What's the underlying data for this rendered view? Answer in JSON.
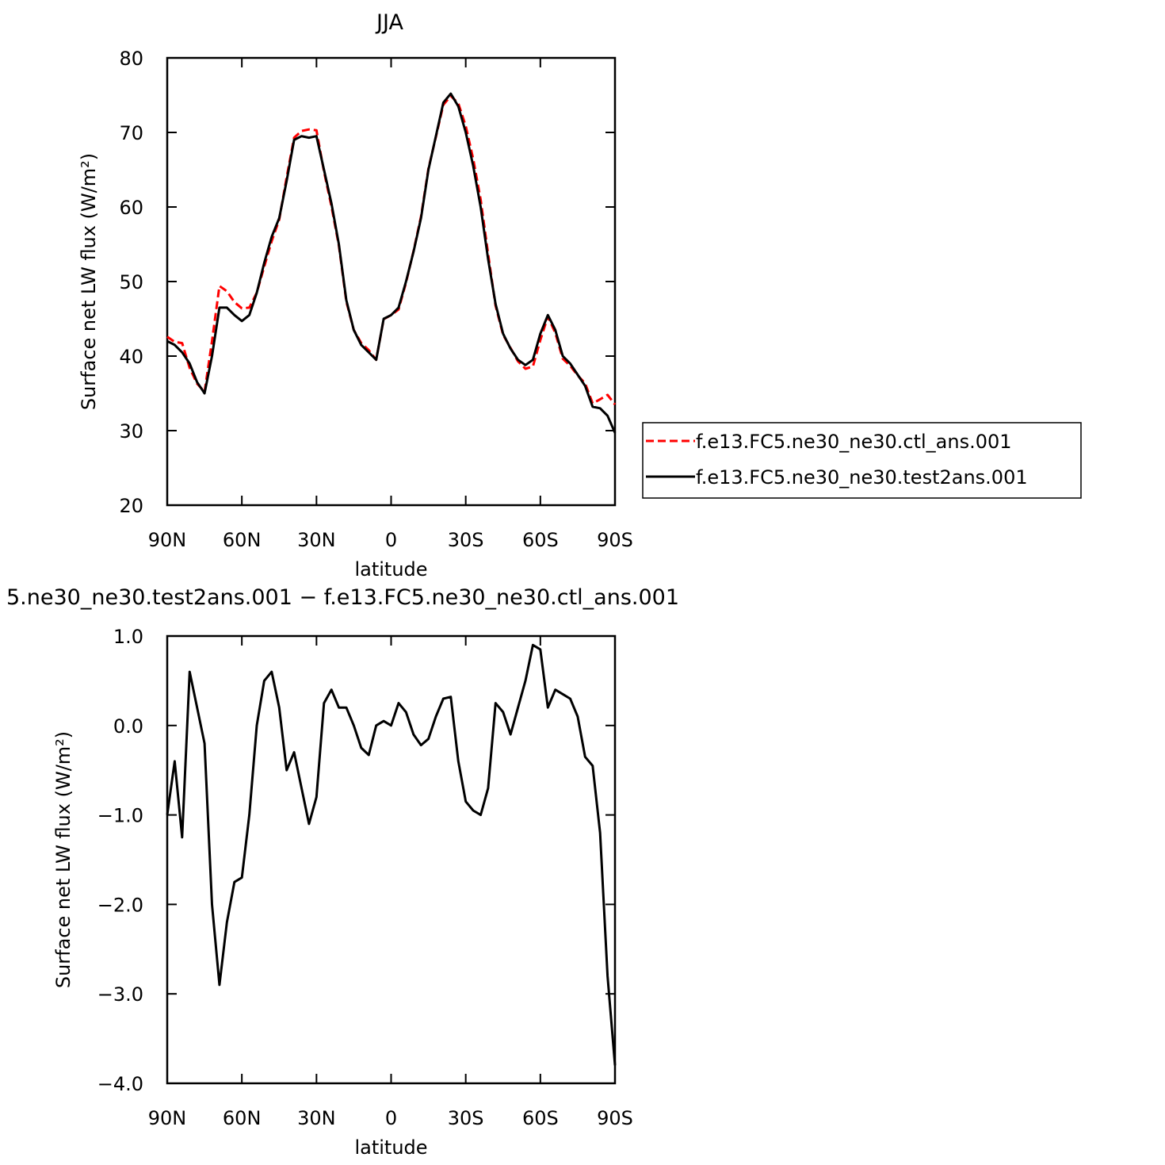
{
  "chart_data": [
    {
      "type": "line",
      "title": "JJA",
      "xlabel": "latitude",
      "ylabel": "Surface net LW flux (W/m²)",
      "x": [
        90,
        87,
        84,
        81,
        78,
        75,
        72,
        69,
        66,
        63,
        60,
        57,
        54,
        51,
        48,
        45,
        42,
        39,
        36,
        33,
        30,
        27,
        24,
        21,
        18,
        15,
        12,
        9,
        6,
        3,
        0,
        -3,
        -6,
        -9,
        -12,
        -15,
        -18,
        -21,
        -24,
        -27,
        -30,
        -33,
        -36,
        -39,
        -42,
        -45,
        -48,
        -51,
        -54,
        -57,
        -60,
        -63,
        -66,
        -69,
        -72,
        -75,
        -78,
        -81,
        -84,
        -87,
        -90
      ],
      "series": [
        {
          "name": "f.e13.FC5.ne30_ne30.ctl_ans.001",
          "color": "#ff0000",
          "dash": true,
          "values": [
            42.6,
            41.9,
            41.75,
            38.4,
            36.3,
            35.2,
            42.0,
            49.4,
            48.7,
            47.25,
            46.4,
            46.5,
            48.5,
            52.0,
            55.4,
            58.3,
            64.0,
            69.3,
            70.2,
            70.4,
            70.3,
            64.75,
            60.1,
            54.8,
            47.3,
            43.5,
            41.75,
            40.8,
            39.5,
            44.95,
            45.5,
            46.25,
            49.85,
            54.1,
            58.7,
            65.15,
            69.4,
            73.7,
            74.9,
            73.9,
            70.85,
            66.45,
            61.0,
            53.7,
            46.75,
            42.85,
            41.1,
            39.3,
            38.3,
            38.6,
            42.15,
            45.3,
            43.1,
            39.65,
            38.7,
            37.4,
            36.35,
            33.65,
            34.2,
            34.8,
            33.5
          ]
        },
        {
          "name": "f.e13.FC5.ne30_ne30.test2ans.001",
          "color": "#000000",
          "dash": false,
          "values": [
            42.0,
            41.5,
            40.5,
            39.0,
            36.5,
            35.0,
            40.0,
            46.5,
            46.5,
            45.5,
            44.7,
            45.5,
            48.5,
            52.5,
            56.0,
            58.5,
            63.5,
            69.0,
            69.5,
            69.3,
            69.5,
            65.0,
            60.5,
            55.0,
            47.5,
            43.5,
            41.5,
            40.5,
            39.5,
            45.0,
            45.5,
            46.5,
            50.0,
            54.0,
            58.5,
            65.0,
            69.5,
            74.0,
            75.2,
            73.5,
            70.0,
            65.5,
            60.0,
            53.0,
            47.0,
            43.0,
            41.0,
            39.5,
            38.8,
            39.5,
            43.0,
            45.5,
            43.5,
            40.0,
            39.0,
            37.5,
            36.0,
            33.2,
            33.0,
            32.0,
            29.7
          ]
        }
      ],
      "xlim": [
        90,
        -90
      ],
      "xticks": [
        {
          "value": 90,
          "label": "90N"
        },
        {
          "value": 60,
          "label": "60N"
        },
        {
          "value": 30,
          "label": "30N"
        },
        0,
        {
          "value": -30,
          "label": "30S"
        },
        {
          "value": -60,
          "label": "60S"
        },
        {
          "value": -90,
          "label": "90S"
        }
      ],
      "ylim": [
        20,
        80
      ],
      "yticks": [
        20,
        30,
        40,
        50,
        60,
        70,
        80
      ],
      "legend": "right"
    },
    {
      "type": "line",
      "title": "5.ne30_ne30.test2ans.001 − f.e13.FC5.ne30_ne30.ctl_ans.001",
      "xlabel": "latitude",
      "ylabel": "Surface net LW flux (W/m²)",
      "x": [
        90,
        87,
        84,
        81,
        78,
        75,
        72,
        69,
        66,
        63,
        60,
        57,
        54,
        51,
        48,
        45,
        42,
        39,
        36,
        33,
        30,
        27,
        24,
        21,
        18,
        15,
        12,
        9,
        6,
        3,
        0,
        -3,
        -6,
        -9,
        -12,
        -15,
        -18,
        -21,
        -24,
        -27,
        -30,
        -33,
        -36,
        -39,
        -42,
        -45,
        -48,
        -51,
        -54,
        -57,
        -60,
        -63,
        -66,
        -69,
        -72,
        -75,
        -78,
        -81,
        -84,
        -87,
        -90
      ],
      "color": "#000000",
      "values": [
        -1.0,
        -0.4,
        -1.25,
        0.6,
        0.2,
        -0.2,
        -2.0,
        -2.9,
        -2.2,
        -1.75,
        -1.7,
        -1.0,
        0.0,
        0.5,
        0.6,
        0.2,
        -0.5,
        -0.3,
        -0.7,
        -1.1,
        -0.8,
        0.25,
        0.4,
        0.2,
        0.2,
        0.0,
        -0.25,
        -0.33,
        0.0,
        0.05,
        0.0,
        0.25,
        0.15,
        -0.1,
        -0.22,
        -0.15,
        0.1,
        0.3,
        0.32,
        -0.4,
        -0.85,
        -0.95,
        -1.0,
        -0.7,
        0.25,
        0.15,
        -0.1,
        0.2,
        0.5,
        0.9,
        0.85,
        0.2,
        0.4,
        0.35,
        0.3,
        0.1,
        -0.35,
        -0.45,
        -1.2,
        -2.8,
        -3.8
      ],
      "xlim": [
        90,
        -90
      ],
      "xticks": [
        {
          "value": 90,
          "label": "90N"
        },
        {
          "value": 60,
          "label": "60N"
        },
        {
          "value": 30,
          "label": "30N"
        },
        0,
        {
          "value": -30,
          "label": "30S"
        },
        {
          "value": -60,
          "label": "60S"
        },
        {
          "value": -90,
          "label": "90S"
        }
      ],
      "ylim": [
        -4,
        1
      ],
      "yticks": [
        {
          "value": -4,
          "label": "−4.0"
        },
        {
          "value": -3,
          "label": "−3.0"
        },
        {
          "value": -2,
          "label": "−2.0"
        },
        {
          "value": -1,
          "label": "−1.0"
        },
        {
          "value": 0,
          "label": "0.0"
        },
        {
          "value": 1,
          "label": "1.0"
        }
      ]
    }
  ]
}
